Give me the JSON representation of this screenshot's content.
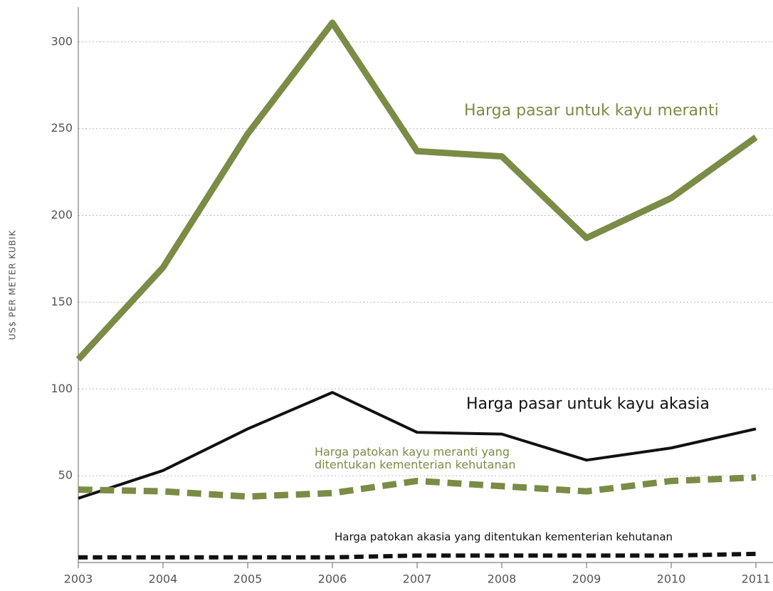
{
  "chart_data": {
    "type": "line",
    "y_label": "US$ PER METER KUBIK",
    "x": [
      "2003",
      "2004",
      "2005",
      "2006",
      "2007",
      "2008",
      "2009",
      "2010",
      "2011"
    ],
    "series": [
      {
        "name": "Harga pasar untuk kayu meranti",
        "color": "#7a8c45",
        "dashed": false,
        "width": 9,
        "values": [
          117,
          170,
          247,
          311,
          237,
          234,
          187,
          210,
          245
        ]
      },
      {
        "name": "Harga pasar untuk kayu akasia",
        "color": "#111111",
        "dashed": false,
        "width": 4,
        "values": [
          37,
          53,
          77,
          98,
          75,
          74,
          59,
          66,
          77
        ]
      },
      {
        "name": "Harga patokan kayu meranti yang ditentukan kementerian kehutanan",
        "color": "#7a8c45",
        "dashed": true,
        "width": 9,
        "values": [
          42,
          41,
          38,
          40,
          47,
          44,
          41,
          47,
          49
        ]
      },
      {
        "name": "Harga patokan akasia yang ditentukan kementerian kehutanan",
        "color": "#111111",
        "dashed": true,
        "width": 6,
        "values": [
          3,
          3,
          3,
          3,
          4,
          4,
          4,
          4,
          5
        ]
      }
    ],
    "ylim": [
      0,
      320
    ],
    "yticks": [
      50,
      100,
      150,
      200,
      250,
      300
    ],
    "grid": true
  }
}
